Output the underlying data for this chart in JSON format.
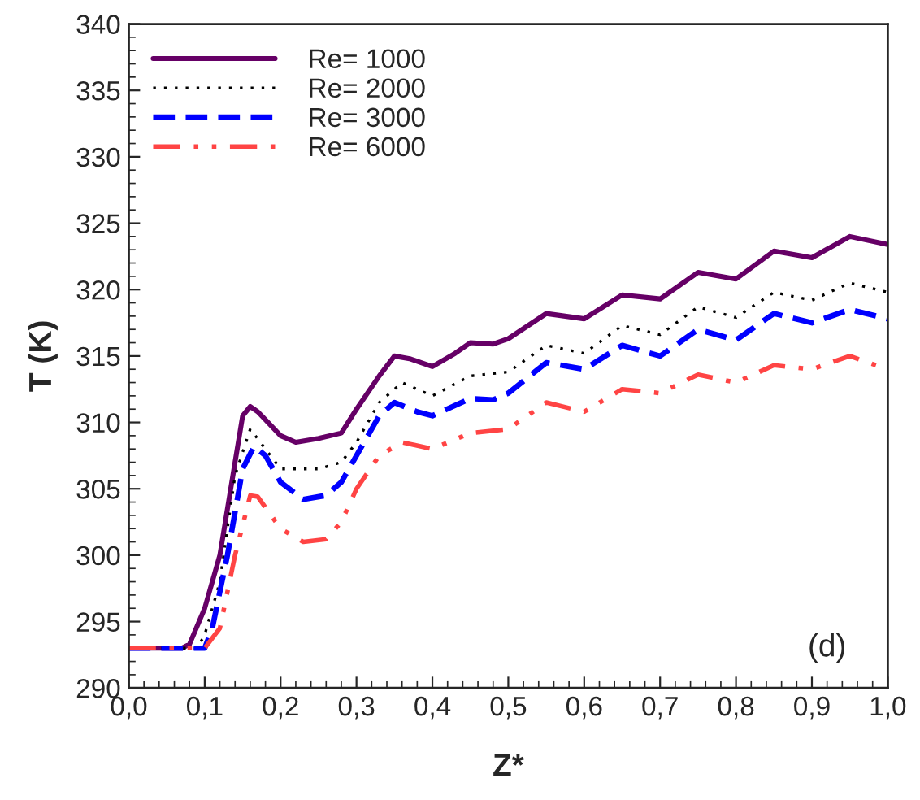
{
  "chart_data": {
    "type": "line",
    "xlabel": "Z*",
    "ylabel": "T (K)",
    "xlim": [
      0,
      1
    ],
    "ylim": [
      290,
      340
    ],
    "xticks": [
      {
        "value": 0,
        "label": "0,0"
      },
      {
        "value": 0.1,
        "label": "0,1"
      },
      {
        "value": 0.2,
        "label": "0,2"
      },
      {
        "value": 0.3,
        "label": "0,3"
      },
      {
        "value": 0.4,
        "label": "0,4"
      },
      {
        "value": 0.5,
        "label": "0,5"
      },
      {
        "value": 0.6,
        "label": "0,6"
      },
      {
        "value": 0.7,
        "label": "0,7"
      },
      {
        "value": 0.8,
        "label": "0,8"
      },
      {
        "value": 0.9,
        "label": "0,9"
      },
      {
        "value": 1,
        "label": "1,0"
      }
    ],
    "yticks": [
      290,
      295,
      300,
      305,
      310,
      315,
      320,
      325,
      330,
      335,
      340
    ],
    "grid": false,
    "legend": "top left",
    "marker": "none",
    "annotations": [
      "(d)"
    ],
    "series": [
      {
        "name": "Re= 1000",
        "color": "#660066",
        "line_style": "solid",
        "x": [
          0,
          0.07,
          0.08,
          0.1,
          0.12,
          0.14,
          0.15,
          0.16,
          0.17,
          0.2,
          0.22,
          0.25,
          0.28,
          0.3,
          0.33,
          0.35,
          0.37,
          0.4,
          0.43,
          0.45,
          0.48,
          0.5,
          0.55,
          0.6,
          0.65,
          0.7,
          0.75,
          0.8,
          0.85,
          0.9,
          0.95,
          1.0
        ],
        "values": [
          293,
          293,
          293.3,
          296,
          300,
          307,
          310.5,
          311.2,
          310.8,
          309,
          308.5,
          308.8,
          309.2,
          311,
          313.5,
          315,
          314.8,
          314.2,
          315.2,
          316,
          315.9,
          316.3,
          318.2,
          317.8,
          319.6,
          319.3,
          321.3,
          320.8,
          322.9,
          322.4,
          324,
          323.4
        ]
      },
      {
        "name": "Re= 2000",
        "color": "#000000",
        "line_style": "dotted",
        "x": [
          0,
          0.09,
          0.1,
          0.12,
          0.14,
          0.16,
          0.18,
          0.2,
          0.25,
          0.28,
          0.3,
          0.33,
          0.36,
          0.4,
          0.45,
          0.5,
          0.55,
          0.6,
          0.65,
          0.7,
          0.75,
          0.8,
          0.85,
          0.9,
          0.95,
          1.0
        ],
        "values": [
          293,
          293,
          294,
          298,
          306,
          309.5,
          308,
          306.5,
          306.5,
          307,
          308.5,
          311.5,
          313,
          312,
          313.5,
          313.8,
          315.8,
          315.2,
          317.3,
          316.6,
          318.7,
          317.9,
          319.8,
          319.2,
          320.5,
          319.8
        ]
      },
      {
        "name": "Re= 3000",
        "color": "#0000ff",
        "line_style": "dashed",
        "x": [
          0,
          0.1,
          0.11,
          0.13,
          0.15,
          0.165,
          0.18,
          0.2,
          0.23,
          0.26,
          0.28,
          0.3,
          0.33,
          0.35,
          0.38,
          0.4,
          0.45,
          0.48,
          0.5,
          0.55,
          0.6,
          0.65,
          0.7,
          0.75,
          0.8,
          0.85,
          0.9,
          0.95,
          1.0
        ],
        "values": [
          293,
          293,
          294.5,
          300,
          306.5,
          308.2,
          307.5,
          305.5,
          304.2,
          304.5,
          305.5,
          307.5,
          310.5,
          311.5,
          310.8,
          310.5,
          311.8,
          311.7,
          312.2,
          314.5,
          314,
          315.8,
          315,
          317,
          316.2,
          318.2,
          317.5,
          318.5,
          317.8
        ]
      },
      {
        "name": "Re= 6000",
        "color": "#ff4444",
        "line_style": "dashdot",
        "x": [
          0,
          0.1,
          0.12,
          0.14,
          0.16,
          0.17,
          0.2,
          0.23,
          0.26,
          0.28,
          0.3,
          0.33,
          0.36,
          0.4,
          0.45,
          0.5,
          0.55,
          0.6,
          0.65,
          0.7,
          0.75,
          0.8,
          0.85,
          0.9,
          0.95,
          1.0
        ],
        "values": [
          293,
          293,
          294.5,
          300,
          304.5,
          304.4,
          302,
          301,
          301.2,
          302.5,
          305,
          307.5,
          308.5,
          308,
          309.2,
          309.5,
          311.5,
          310.8,
          312.5,
          312.2,
          313.6,
          313,
          314.3,
          314,
          315,
          314
        ]
      }
    ]
  }
}
